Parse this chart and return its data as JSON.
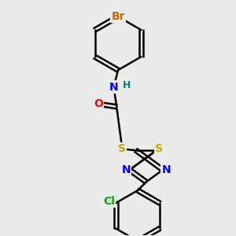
{
  "bg_color": "#ebebeb",
  "bond_color": "#000000",
  "atom_colors": {
    "Br": "#cc6600",
    "N": "#0000ff",
    "H": "#008080",
    "O": "#ff0000",
    "S": "#ccaa00",
    "Cl": "#00aa00",
    "C": "#000000"
  },
  "bond_width": 1.8,
  "font_size": 10,
  "fig_size": [
    3.0,
    3.0
  ],
  "dpi": 100
}
